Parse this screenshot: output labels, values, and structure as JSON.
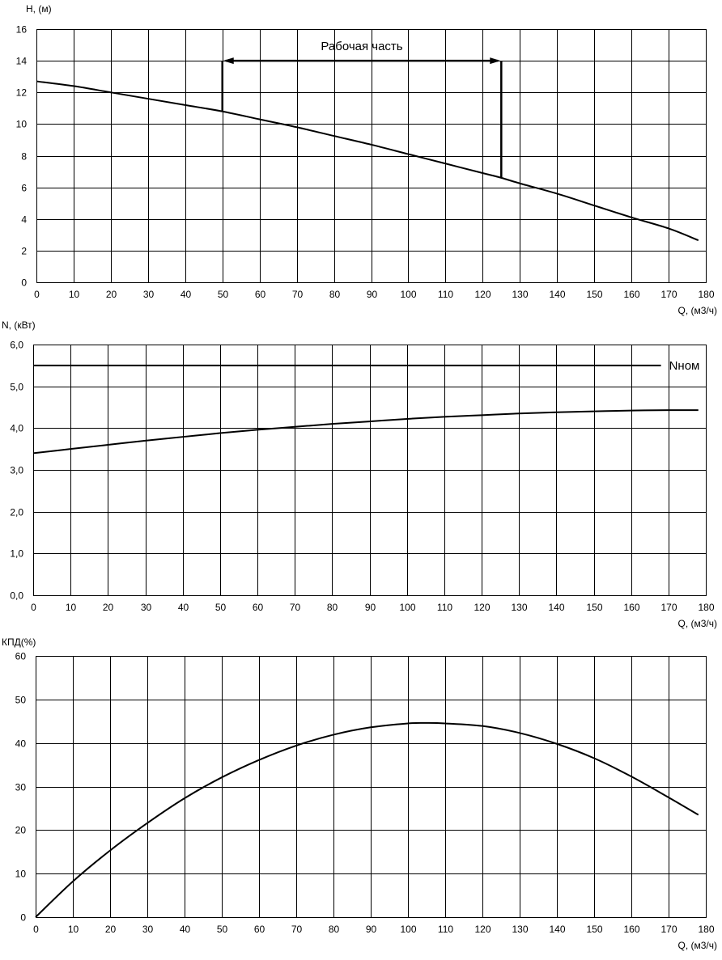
{
  "chart_data": [
    {
      "type": "line",
      "id": "head",
      "ylabel": "H, (м)",
      "xlabel": "Q, (м3/ч)",
      "xlim": [
        0,
        180
      ],
      "ylim": [
        0,
        16
      ],
      "x_ticks": [
        "0",
        "10",
        "20",
        "30",
        "40",
        "50",
        "60",
        "70",
        "80",
        "90",
        "100",
        "110",
        "120",
        "130",
        "140",
        "150",
        "160",
        "170",
        "180"
      ],
      "y_ticks": [
        "0",
        "2",
        "4",
        "6",
        "8",
        "10",
        "12",
        "14",
        "16"
      ],
      "grid": true,
      "series": [
        {
          "x": [
            0,
            10,
            20,
            30,
            40,
            50,
            60,
            70,
            80,
            90,
            100,
            110,
            120,
            125,
            130,
            140,
            150,
            160,
            170,
            178
          ],
          "values": [
            12.7,
            12.4,
            12.0,
            11.6,
            11.2,
            10.8,
            10.3,
            9.8,
            9.25,
            8.7,
            8.1,
            7.5,
            6.9,
            6.6,
            6.25,
            5.6,
            4.85,
            4.1,
            3.4,
            2.65
          ]
        }
      ],
      "annotation": {
        "text": "Рабочая часть",
        "x_start": 50,
        "x_end": 125,
        "y": 14,
        "y_start_bottom": 10.8,
        "y_end_bottom": 6.6
      }
    },
    {
      "type": "line",
      "id": "power",
      "ylabel": "N, (кВт)",
      "xlabel": "Q, (м3/ч)",
      "xlim": [
        0,
        180
      ],
      "ylim": [
        0,
        6
      ],
      "x_ticks": [
        "0",
        "10",
        "20",
        "30",
        "40",
        "50",
        "60",
        "70",
        "80",
        "90",
        "100",
        "110",
        "120",
        "130",
        "140",
        "150",
        "160",
        "170",
        "180"
      ],
      "y_ticks": [
        "0,0",
        "1,0",
        "2,0",
        "3,0",
        "4,0",
        "5,0",
        "6,0"
      ],
      "grid": true,
      "series": [
        {
          "x": [
            0,
            10,
            20,
            30,
            40,
            50,
            60,
            70,
            80,
            90,
            100,
            110,
            120,
            130,
            140,
            150,
            160,
            170,
            178
          ],
          "values": [
            3.4,
            3.5,
            3.6,
            3.7,
            3.79,
            3.88,
            3.96,
            4.03,
            4.1,
            4.16,
            4.22,
            4.27,
            4.31,
            4.35,
            4.38,
            4.4,
            4.42,
            4.43,
            4.43
          ]
        }
      ],
      "reference_line": {
        "label": "Nном",
        "value": 5.5,
        "x_end": 168
      }
    },
    {
      "type": "line",
      "id": "efficiency",
      "ylabel": "КПД(%)",
      "xlabel": "Q, (м3/ч)",
      "xlim": [
        0,
        180
      ],
      "ylim": [
        0,
        60
      ],
      "x_ticks": [
        "0",
        "10",
        "20",
        "30",
        "40",
        "50",
        "60",
        "70",
        "80",
        "90",
        "100",
        "110",
        "120",
        "130",
        "140",
        "150",
        "160",
        "170",
        "180"
      ],
      "y_ticks": [
        "0",
        "10",
        "20",
        "30",
        "40",
        "50",
        "60"
      ],
      "grid": true,
      "series": [
        {
          "x": [
            0,
            10,
            20,
            30,
            40,
            50,
            60,
            70,
            80,
            90,
            100,
            105,
            110,
            120,
            130,
            140,
            150,
            160,
            170,
            178
          ],
          "values": [
            0,
            8.2,
            15.3,
            21.6,
            27.3,
            32.1,
            36.1,
            39.4,
            41.9,
            43.6,
            44.5,
            44.6,
            44.5,
            43.9,
            42.3,
            39.8,
            36.5,
            32.3,
            27.5,
            23.5
          ]
        }
      ]
    }
  ]
}
